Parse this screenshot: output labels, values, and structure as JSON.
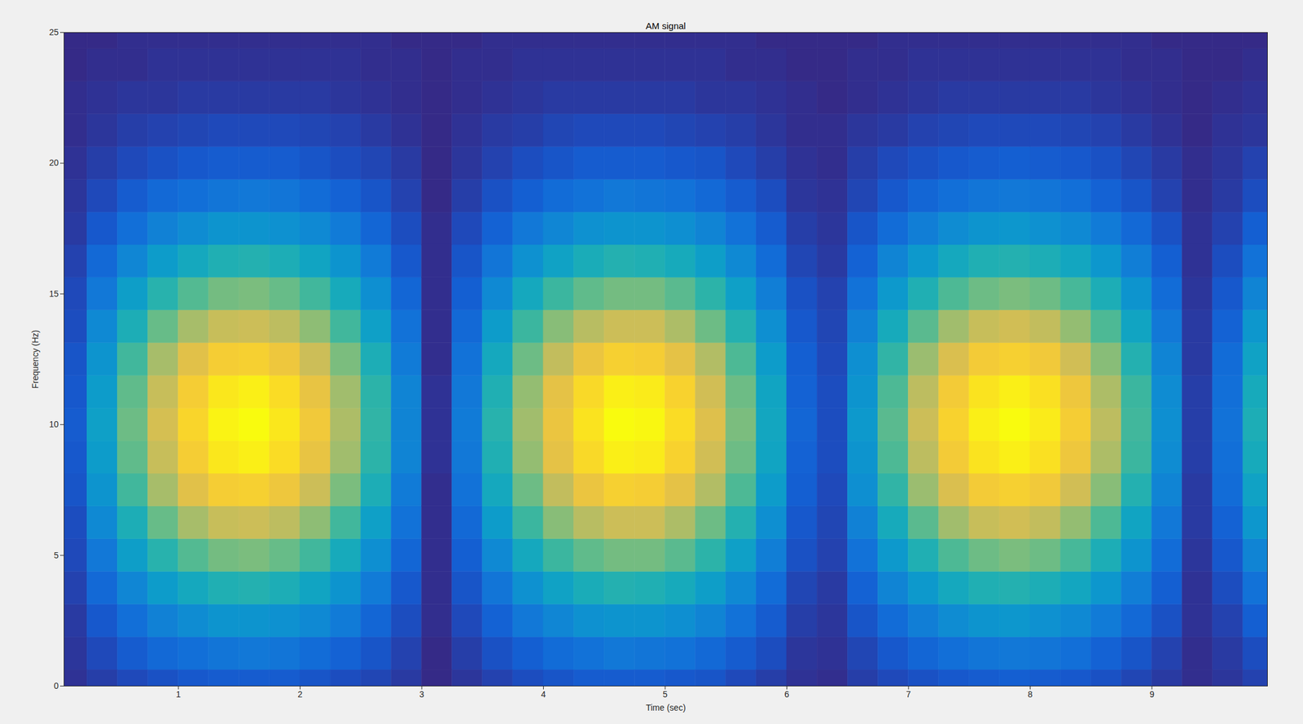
{
  "chart_data": {
    "type": "heatmap",
    "title": "AM signal",
    "xlabel": "Time (sec)",
    "ylabel": "Frequency (Hz)",
    "xlim": [
      0.06,
      9.95
    ],
    "ylim": [
      0,
      25
    ],
    "xticks": [
      1,
      2,
      3,
      4,
      5,
      6,
      7,
      8,
      9
    ],
    "yticks": [
      0,
      5,
      10,
      15,
      20,
      25
    ],
    "x": [
      0.125,
      0.375,
      0.625,
      0.875,
      1.125,
      1.375,
      1.625,
      1.875,
      2.125,
      2.375,
      2.625,
      2.875,
      3.125,
      3.375,
      3.625,
      3.875,
      4.125,
      4.375,
      4.625,
      4.875,
      5.125,
      5.375,
      5.625,
      5.875,
      6.125,
      6.375,
      6.625,
      6.875,
      7.125,
      7.375,
      7.625,
      7.875,
      8.125,
      8.375,
      8.625,
      8.875,
      9.125,
      9.375,
      9.625,
      9.875
    ],
    "y": [
      0,
      1.25,
      2.5,
      3.75,
      5,
      6.25,
      7.5,
      8.75,
      10,
      11.25,
      12.5,
      13.75,
      15,
      16.25,
      17.5,
      18.75,
      20,
      21.25,
      22.5,
      23.75,
      25
    ],
    "values": [
      [
        2,
        5,
        8,
        10,
        12,
        13,
        13,
        13,
        11,
        9,
        7,
        4,
        0,
        3,
        6,
        9,
        11,
        13,
        13,
        13,
        12,
        11,
        8,
        5,
        2,
        1,
        5,
        8,
        10,
        12,
        13,
        14,
        13,
        12,
        10,
        7,
        4,
        1,
        3,
        6
      ],
      [
        3,
        8,
        13,
        17,
        19,
        21,
        22,
        21,
        18,
        15,
        11,
        6,
        0,
        5,
        10,
        14,
        18,
        20,
        22,
        21,
        20,
        17,
        13,
        9,
        3,
        2,
        7,
        12,
        16,
        19,
        21,
        22,
        21,
        19,
        15,
        11,
        6,
        1,
        4,
        9
      ],
      [
        4,
        12,
        19,
        25,
        29,
        32,
        32,
        31,
        28,
        23,
        16,
        9,
        1,
        8,
        15,
        22,
        27,
        31,
        32,
        32,
        30,
        26,
        20,
        13,
        5,
        3,
        11,
        18,
        24,
        29,
        32,
        33,
        31,
        28,
        23,
        17,
        10,
        2,
        6,
        14
      ],
      [
        6,
        17,
        27,
        35,
        41,
        45,
        46,
        44,
        39,
        32,
        23,
        12,
        1,
        11,
        21,
        31,
        38,
        43,
        46,
        45,
        42,
        36,
        28,
        18,
        7,
        4,
        15,
        26,
        34,
        41,
        45,
        46,
        44,
        40,
        33,
        24,
        14,
        2,
        9,
        20
      ],
      [
        8,
        22,
        36,
        47,
        55,
        60,
        61,
        58,
        52,
        42,
        30,
        16,
        1,
        14,
        28,
        41,
        51,
        57,
        60,
        60,
        56,
        48,
        37,
        24,
        10,
        6,
        20,
        34,
        45,
        54,
        59,
        61,
        59,
        53,
        44,
        32,
        18,
        3,
        12,
        26
      ],
      [
        9,
        28,
        44,
        58,
        68,
        74,
        75,
        72,
        64,
        52,
        37,
        20,
        1,
        17,
        35,
        51,
        63,
        71,
        75,
        75,
        69,
        59,
        46,
        30,
        12,
        7,
        25,
        42,
        56,
        67,
        74,
        76,
        73,
        65,
        54,
        39,
        22,
        4,
        15,
        33
      ],
      [
        11,
        32,
        52,
        68,
        80,
        87,
        88,
        84,
        75,
        61,
        44,
        23,
        1,
        20,
        41,
        59,
        73,
        83,
        88,
        87,
        81,
        70,
        54,
        35,
        14,
        8,
        30,
        49,
        66,
        78,
        86,
        88,
        85,
        76,
        63,
        46,
        26,
        4,
        18,
        38
      ],
      [
        12,
        35,
        57,
        74,
        87,
        95,
        97,
        92,
        82,
        67,
        48,
        26,
        2,
        22,
        45,
        65,
        81,
        91,
        97,
        96,
        89,
        76,
        59,
        39,
        15,
        9,
        32,
        54,
        72,
        86,
        94,
        97,
        93,
        84,
        69,
        51,
        29,
        5,
        19,
        42
      ],
      [
        13,
        37,
        59,
        77,
        90,
        98,
        100,
        95,
        85,
        69,
        49,
        26,
        2,
        23,
        47,
        67,
        83,
        94,
        100,
        99,
        92,
        79,
        61,
        40,
        16,
        9,
        34,
        56,
        75,
        89,
        97,
        100,
        96,
        87,
        72,
        52,
        30,
        5,
        20,
        44
      ],
      [
        12,
        35,
        57,
        74,
        87,
        95,
        97,
        92,
        82,
        67,
        48,
        26,
        2,
        22,
        45,
        65,
        81,
        91,
        97,
        96,
        89,
        76,
        59,
        39,
        15,
        9,
        32,
        54,
        72,
        86,
        94,
        97,
        93,
        84,
        69,
        51,
        29,
        5,
        19,
        42
      ],
      [
        11,
        32,
        52,
        68,
        80,
        87,
        88,
        84,
        75,
        61,
        44,
        23,
        1,
        20,
        41,
        59,
        73,
        83,
        88,
        87,
        81,
        70,
        54,
        35,
        14,
        8,
        30,
        49,
        66,
        78,
        86,
        88,
        85,
        76,
        63,
        46,
        26,
        4,
        18,
        38
      ],
      [
        9,
        28,
        44,
        58,
        68,
        74,
        75,
        72,
        64,
        52,
        37,
        20,
        1,
        17,
        35,
        51,
        63,
        71,
        75,
        75,
        69,
        59,
        46,
        30,
        12,
        7,
        25,
        42,
        56,
        67,
        74,
        76,
        73,
        65,
        54,
        39,
        22,
        4,
        15,
        33
      ],
      [
        8,
        22,
        36,
        47,
        55,
        60,
        61,
        58,
        52,
        42,
        30,
        16,
        1,
        14,
        28,
        41,
        51,
        57,
        60,
        60,
        56,
        48,
        37,
        24,
        10,
        6,
        20,
        34,
        45,
        54,
        59,
        61,
        59,
        53,
        44,
        32,
        18,
        3,
        12,
        26
      ],
      [
        6,
        17,
        27,
        35,
        41,
        45,
        46,
        44,
        39,
        32,
        23,
        12,
        1,
        11,
        21,
        31,
        38,
        43,
        46,
        45,
        42,
        36,
        28,
        18,
        7,
        4,
        15,
        26,
        34,
        41,
        45,
        46,
        44,
        40,
        33,
        24,
        14,
        2,
        9,
        20
      ],
      [
        4,
        12,
        19,
        25,
        29,
        32,
        32,
        31,
        28,
        23,
        16,
        9,
        1,
        8,
        15,
        22,
        27,
        31,
        32,
        32,
        30,
        26,
        20,
        13,
        5,
        3,
        11,
        18,
        24,
        29,
        32,
        33,
        31,
        28,
        23,
        17,
        10,
        2,
        6,
        14
      ],
      [
        3,
        8,
        13,
        17,
        19,
        21,
        22,
        21,
        18,
        15,
        11,
        6,
        0,
        5,
        10,
        14,
        18,
        20,
        22,
        21,
        20,
        17,
        13,
        9,
        3,
        2,
        7,
        12,
        16,
        19,
        21,
        22,
        21,
        19,
        15,
        11,
        6,
        1,
        4,
        9
      ],
      [
        2,
        5,
        8,
        10,
        12,
        13,
        13,
        13,
        11,
        9,
        7,
        4,
        0,
        3,
        6,
        9,
        11,
        13,
        13,
        13,
        12,
        11,
        8,
        5,
        2,
        1,
        5,
        8,
        10,
        12,
        13,
        14,
        13,
        12,
        10,
        7,
        4,
        1,
        3,
        6
      ],
      [
        1,
        3,
        5,
        6,
        7,
        8,
        8,
        8,
        7,
        6,
        4,
        2,
        0,
        2,
        4,
        5,
        7,
        8,
        8,
        8,
        7,
        6,
        5,
        3,
        1,
        1,
        3,
        4,
        6,
        7,
        8,
        8,
        8,
        7,
        6,
        4,
        2,
        0,
        2,
        3
      ],
      [
        1,
        2,
        3,
        3,
        4,
        4,
        4,
        4,
        4,
        3,
        2,
        1,
        0,
        1,
        2,
        3,
        4,
        4,
        4,
        4,
        4,
        3,
        3,
        2,
        1,
        0,
        1,
        2,
        3,
        4,
        4,
        4,
        4,
        4,
        3,
        2,
        1,
        0,
        1,
        2
      ],
      [
        0,
        1,
        1,
        2,
        2,
        2,
        2,
        2,
        2,
        2,
        1,
        1,
        0,
        1,
        1,
        2,
        2,
        2,
        2,
        2,
        2,
        2,
        1,
        1,
        0,
        0,
        1,
        1,
        2,
        2,
        2,
        2,
        2,
        2,
        2,
        1,
        1,
        0,
        0,
        1
      ],
      [
        0,
        0,
        1,
        1,
        1,
        1,
        1,
        1,
        1,
        1,
        1,
        0,
        0,
        0,
        1,
        1,
        1,
        1,
        1,
        1,
        1,
        1,
        1,
        0,
        0,
        0,
        0,
        1,
        1,
        1,
        1,
        1,
        1,
        1,
        1,
        1,
        0,
        0,
        0,
        0
      ]
    ]
  }
}
